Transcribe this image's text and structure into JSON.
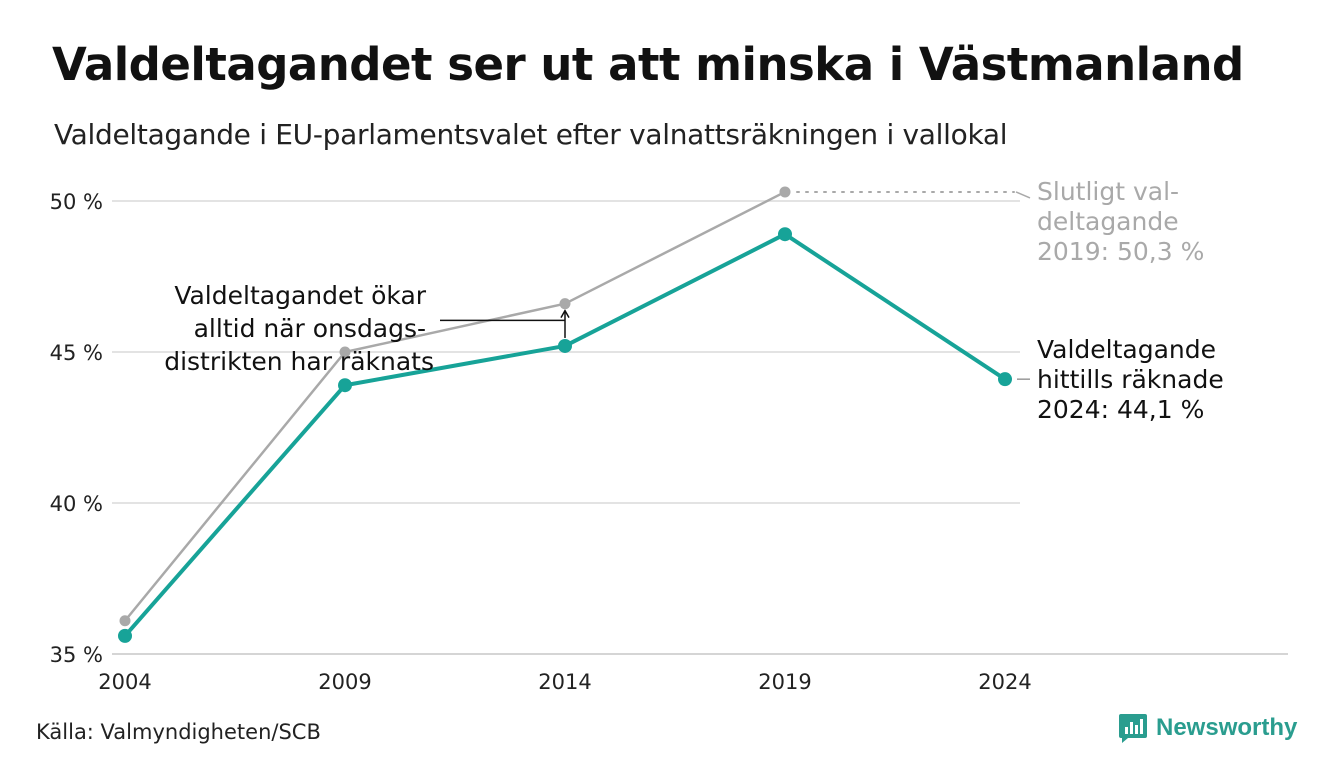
{
  "title": "Valdeltagandet ser ut att minska i Västmanland",
  "subtitle": "Valdeltagande i EU-parlamentsvalet efter valnattsräkningen i vallokal",
  "source": "Källa: Valmyndigheten/SCB",
  "brand": "Newsworthy",
  "colors": {
    "counted": "#17a398",
    "final": "#a9a9a9",
    "grid": "#e3e3e3",
    "brand": "#2a9d8f"
  },
  "chart_data": {
    "type": "line",
    "x": [
      2004,
      2009,
      2014,
      2019,
      2024
    ],
    "x_tick_labels": [
      "2004",
      "2009",
      "2014",
      "2019",
      "2024"
    ],
    "y_ticks": [
      35,
      40,
      45,
      50
    ],
    "y_tick_labels": [
      "35 %",
      "40 %",
      "45 %",
      "50 %"
    ],
    "ylim": [
      35,
      50
    ],
    "grid": "horizontal",
    "series": [
      {
        "key": "final",
        "color": "#a9a9a9",
        "values": [
          36.1,
          45.0,
          46.6,
          50.3,
          null
        ]
      },
      {
        "key": "counted",
        "color": "#17a398",
        "values": [
          35.6,
          43.9,
          45.2,
          48.9,
          44.1
        ]
      }
    ],
    "annotations": {
      "final_label": [
        "Slutligt val-",
        "deltagande",
        "2019: 50,3 %"
      ],
      "counted_label": [
        "Valdeltagande",
        "hittills räknade",
        "2024: 44,1 %"
      ],
      "wednesday_note": [
        "Valdeltagandet ökar",
        "alltid när onsdags-",
        "distrikten har räknats"
      ]
    }
  }
}
